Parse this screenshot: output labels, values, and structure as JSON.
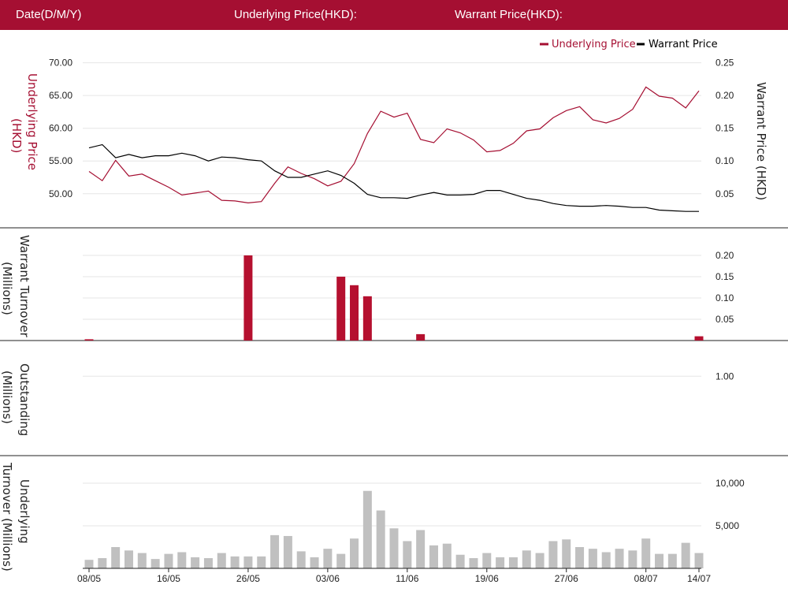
{
  "header": {
    "date_label": "Date(D/M/Y)",
    "underlying_label": "Underlying Price(HKD):",
    "warrant_label": "Warrant Price(HKD):"
  },
  "colors": {
    "header_bg": "#a50f32",
    "underlying": "#a50f32",
    "warrant": "#000000",
    "turnover_bar": "#b5102f",
    "underlying_bar": "#c0c0c0",
    "grid": "#e6e6e6"
  },
  "legend": {
    "underlying": "Underlying Price",
    "warrant": "Warrant Price"
  },
  "x_ticks": [
    {
      "i": 0,
      "label": "08/05"
    },
    {
      "i": 6,
      "label": "16/05"
    },
    {
      "i": 12,
      "label": "26/05"
    },
    {
      "i": 18,
      "label": "03/06"
    },
    {
      "i": 24,
      "label": "11/06"
    },
    {
      "i": 30,
      "label": "19/06"
    },
    {
      "i": 36,
      "label": "27/06"
    },
    {
      "i": 42,
      "label": "08/07"
    },
    {
      "i": 46,
      "label": "14/07"
    }
  ],
  "chart_data": [
    {
      "type": "line",
      "panel": "price",
      "x_count": 47,
      "left_axis": {
        "label": "Underlying Price (HKD)",
        "ticks": [
          "70.00",
          "65.00",
          "60.00",
          "55.00",
          "50.00"
        ],
        "ylim": [
          46,
          72
        ]
      },
      "right_axis": {
        "label": "Warrant  Price (HKD)",
        "ticks": [
          "0.25",
          "0.20",
          "0.15",
          "0.10",
          "0.05"
        ],
        "ylim": [
          0.01,
          0.27
        ]
      },
      "legend_position": "top-right",
      "series": [
        {
          "name": "Underlying Price",
          "axis": "left",
          "values": [
            53.4,
            52.0,
            55.1,
            52.7,
            53.0,
            52.0,
            51.0,
            49.8,
            50.1,
            50.4,
            49.0,
            48.9,
            48.6,
            48.8,
            51.6,
            54.1,
            53.1,
            52.3,
            51.2,
            51.9,
            54.6,
            59.2,
            62.6,
            61.7,
            62.3,
            58.3,
            57.8,
            59.9,
            59.3,
            58.2,
            56.4,
            56.6,
            57.7,
            59.6,
            59.9,
            61.6,
            62.7,
            63.3,
            61.3,
            60.8,
            61.5,
            62.9,
            66.3,
            64.9,
            64.6,
            63.1,
            65.7
          ]
        },
        {
          "name": "Warrant Price",
          "axis": "right",
          "values": [
            0.12,
            0.125,
            0.105,
            0.11,
            0.105,
            0.108,
            0.108,
            0.112,
            0.108,
            0.1,
            0.106,
            0.105,
            0.102,
            0.1,
            0.085,
            0.075,
            0.075,
            0.08,
            0.085,
            0.078,
            0.066,
            0.049,
            0.044,
            0.044,
            0.043,
            0.048,
            0.052,
            0.048,
            0.048,
            0.049,
            0.055,
            0.055,
            0.049,
            0.043,
            0.04,
            0.035,
            0.032,
            0.031,
            0.031,
            0.032,
            0.031,
            0.029,
            0.029,
            0.025,
            0.024,
            0.023,
            0.023
          ]
        }
      ]
    },
    {
      "type": "bar",
      "panel": "warrant_turnover",
      "x_count": 47,
      "axis_label": "Warrant  Turnover (Millions)",
      "ticks": [
        "0.20",
        "0.15",
        "0.10",
        "0.05"
      ],
      "ylim": [
        0,
        0.2
      ],
      "values": [
        0.003,
        0,
        0,
        0,
        0,
        0,
        0,
        0,
        0,
        0,
        0,
        0,
        0.2,
        0,
        0,
        0,
        0,
        0,
        0,
        0.15,
        0.13,
        0.104,
        0,
        0,
        0,
        0.015,
        0,
        0,
        0,
        0,
        0,
        0,
        0,
        0,
        0,
        0,
        0,
        0,
        0,
        0,
        0,
        0,
        0,
        0,
        0,
        0,
        0.01
      ]
    },
    {
      "type": "bar",
      "panel": "outstanding",
      "x_count": 47,
      "axis_label": "Outstanding (Millions)",
      "ticks": [
        "1.00"
      ],
      "ylim": [
        0,
        1.45
      ],
      "values": []
    },
    {
      "type": "bar",
      "panel": "underlying_turnover",
      "x_count": 47,
      "axis_label": "Underlying Turnover (Millions)",
      "ticks": [
        "10,000",
        "5,000"
      ],
      "ylim": [
        0,
        10000
      ],
      "values": [
        1000,
        1200,
        2500,
        2100,
        1800,
        1100,
        1700,
        1900,
        1300,
        1200,
        1800,
        1400,
        1400,
        1400,
        3900,
        3800,
        2000,
        1300,
        2300,
        1700,
        3500,
        9100,
        6800,
        4700,
        3200,
        4500,
        2700,
        2900,
        1600,
        1200,
        1800,
        1300,
        1300,
        2100,
        1800,
        3200,
        3400,
        2500,
        2300,
        1900,
        2300,
        2100,
        3500,
        1700,
        1700,
        3000,
        1800
      ]
    }
  ]
}
